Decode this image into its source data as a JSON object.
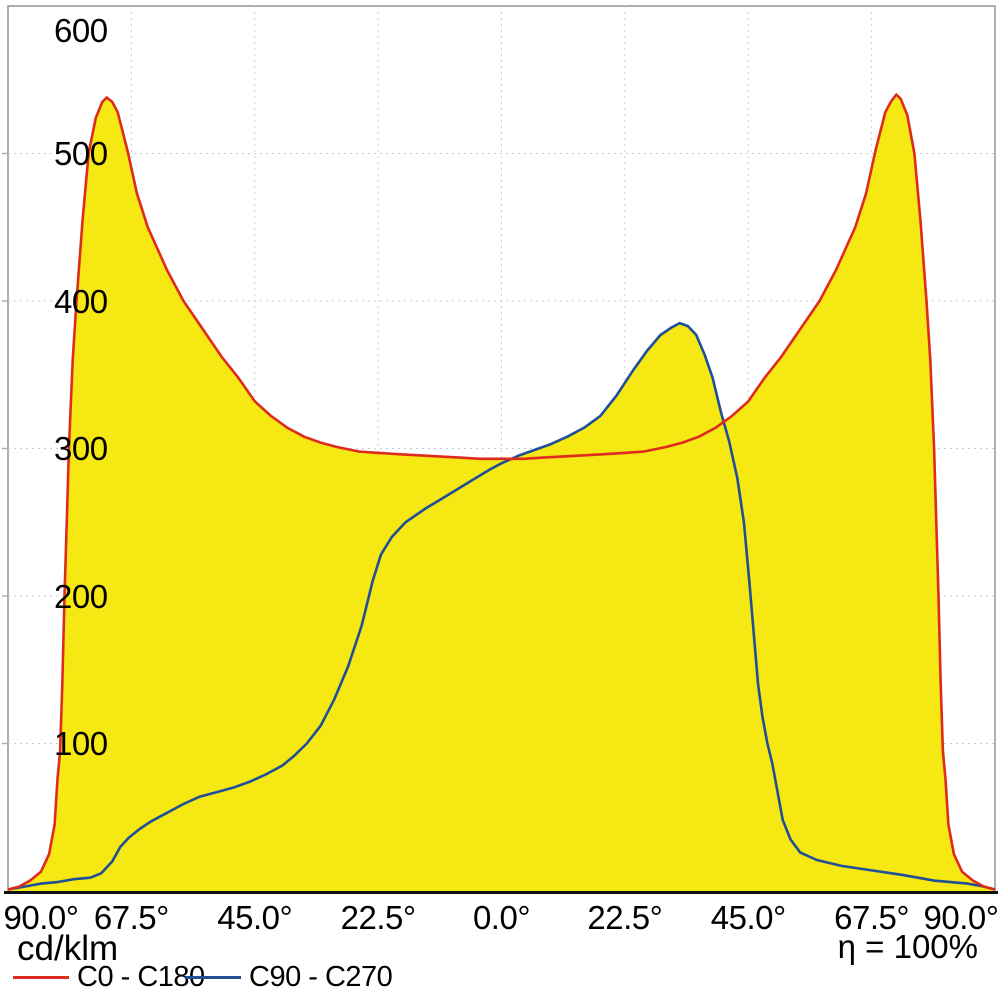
{
  "labels": {
    "unit": "cd/klm",
    "efficiency": "η = 100%"
  },
  "chart_data": {
    "type": "area",
    "title": "",
    "xlabel": "",
    "ylabel": "cd/klm",
    "x_unit": "degrees",
    "xlim": [
      -90,
      90
    ],
    "ylim": [
      0,
      600
    ],
    "x_ticks": [
      -90,
      -67.5,
      -45,
      -22.5,
      0,
      22.5,
      45,
      67.5,
      90
    ],
    "x_tick_labels": [
      "90.0°",
      "67.5°",
      "45.0°",
      "22.5°",
      "0.0°",
      "22.5°",
      "45.0°",
      "67.5°",
      "90.0°"
    ],
    "y_ticks": [
      100,
      200,
      300,
      400,
      500,
      600
    ],
    "y_tick_labels": [
      "100",
      "200",
      "300",
      "400",
      "500",
      "600"
    ],
    "grid": "dotted",
    "grid_color": "#cccccc",
    "border_color": "#9b9b9b",
    "axis_color": "#111111",
    "fill_color": "#f5e813",
    "legend_position": "bottom-left",
    "efficiency": "η = 100%",
    "series": [
      {
        "name": "C0 - C180",
        "color": "#df2b1e",
        "points": [
          [
            -90,
            1
          ],
          [
            -88,
            3
          ],
          [
            -86,
            7
          ],
          [
            -84,
            13
          ],
          [
            -82.5,
            25
          ],
          [
            -81.5,
            45
          ],
          [
            -81,
            75
          ],
          [
            -80.5,
            95
          ],
          [
            -80.1,
            140
          ],
          [
            -79.7,
            200
          ],
          [
            -79.2,
            260
          ],
          [
            -78.9,
            300
          ],
          [
            -78.2,
            360
          ],
          [
            -77.5,
            400
          ],
          [
            -76.4,
            455
          ],
          [
            -75.3,
            500
          ],
          [
            -74,
            524
          ],
          [
            -72.8,
            535
          ],
          [
            -72,
            538
          ],
          [
            -71,
            535
          ],
          [
            -70,
            528
          ],
          [
            -68.2,
            502
          ],
          [
            -66.5,
            473
          ],
          [
            -64.5,
            450
          ],
          [
            -61,
            421
          ],
          [
            -58,
            400
          ],
          [
            -54.5,
            381
          ],
          [
            -51,
            362
          ],
          [
            -48,
            348
          ],
          [
            -45,
            332
          ],
          [
            -42,
            322
          ],
          [
            -39,
            314
          ],
          [
            -36,
            308
          ],
          [
            -33,
            304
          ],
          [
            -30,
            301
          ],
          [
            -26,
            298
          ],
          [
            -22.5,
            297
          ],
          [
            -18,
            296
          ],
          [
            -13,
            295
          ],
          [
            -8,
            294
          ],
          [
            -4,
            293
          ],
          [
            0,
            293
          ],
          [
            4,
            293
          ],
          [
            8,
            294
          ],
          [
            13,
            295
          ],
          [
            18,
            296
          ],
          [
            22.5,
            297
          ],
          [
            26,
            298
          ],
          [
            30,
            301
          ],
          [
            33,
            304
          ],
          [
            36,
            308
          ],
          [
            39,
            314
          ],
          [
            42,
            322
          ],
          [
            45,
            332
          ],
          [
            48,
            348
          ],
          [
            51,
            362
          ],
          [
            54.5,
            381
          ],
          [
            58,
            400
          ],
          [
            61,
            421
          ],
          [
            64.5,
            450
          ],
          [
            66.5,
            473
          ],
          [
            68.2,
            502
          ],
          [
            70,
            528
          ],
          [
            71,
            535
          ],
          [
            72,
            540
          ],
          [
            72.8,
            537
          ],
          [
            74,
            526
          ],
          [
            75.3,
            500
          ],
          [
            76.4,
            455
          ],
          [
            77.5,
            400
          ],
          [
            78.2,
            360
          ],
          [
            78.9,
            300
          ],
          [
            79.7,
            200
          ],
          [
            80.1,
            140
          ],
          [
            80.5,
            95
          ],
          [
            81,
            75
          ],
          [
            81.5,
            45
          ],
          [
            82.5,
            25
          ],
          [
            84,
            13
          ],
          [
            86,
            7
          ],
          [
            88,
            3
          ],
          [
            90,
            1
          ]
        ]
      },
      {
        "name": "C90 - C270",
        "color": "#1f4f96",
        "points": [
          [
            -90,
            1
          ],
          [
            -87,
            3
          ],
          [
            -84,
            5
          ],
          [
            -81,
            6
          ],
          [
            -78,
            8
          ],
          [
            -75,
            9
          ],
          [
            -73,
            12
          ],
          [
            -71,
            20
          ],
          [
            -69.5,
            30
          ],
          [
            -68,
            36
          ],
          [
            -66,
            42
          ],
          [
            -64,
            47
          ],
          [
            -61,
            53
          ],
          [
            -58,
            59
          ],
          [
            -55,
            64
          ],
          [
            -52,
            67
          ],
          [
            -49,
            70
          ],
          [
            -46,
            74
          ],
          [
            -43,
            79
          ],
          [
            -40,
            85
          ],
          [
            -38,
            91
          ],
          [
            -35.5,
            100
          ],
          [
            -33,
            112
          ],
          [
            -30.5,
            130
          ],
          [
            -28,
            152
          ],
          [
            -25.5,
            180
          ],
          [
            -23.5,
            210
          ],
          [
            -22,
            228
          ],
          [
            -20,
            240
          ],
          [
            -17.5,
            250
          ],
          [
            -14,
            259
          ],
          [
            -10,
            268
          ],
          [
            -6,
            277
          ],
          [
            -2,
            286
          ],
          [
            0,
            290
          ],
          [
            3,
            295
          ],
          [
            6,
            299
          ],
          [
            9,
            303
          ],
          [
            12,
            308
          ],
          [
            15,
            314
          ],
          [
            18,
            322
          ],
          [
            21,
            336
          ],
          [
            24,
            353
          ],
          [
            26.5,
            366
          ],
          [
            29,
            377
          ],
          [
            31,
            382
          ],
          [
            32.5,
            385
          ],
          [
            34,
            383
          ],
          [
            35.5,
            377
          ],
          [
            37,
            364
          ],
          [
            38.5,
            348
          ],
          [
            40,
            325
          ],
          [
            41.5,
            305
          ],
          [
            43,
            280
          ],
          [
            44.2,
            250
          ],
          [
            45.2,
            210
          ],
          [
            46,
            175
          ],
          [
            46.8,
            140
          ],
          [
            47.6,
            118
          ],
          [
            48.5,
            100
          ],
          [
            49.4,
            86
          ],
          [
            50.3,
            68
          ],
          [
            51.3,
            48
          ],
          [
            52.7,
            35
          ],
          [
            54.5,
            26
          ],
          [
            57.5,
            21
          ],
          [
            62,
            17
          ],
          [
            67.5,
            14
          ],
          [
            73,
            11
          ],
          [
            79,
            7
          ],
          [
            85,
            5
          ],
          [
            88,
            3
          ],
          [
            90,
            1
          ]
        ]
      }
    ]
  }
}
